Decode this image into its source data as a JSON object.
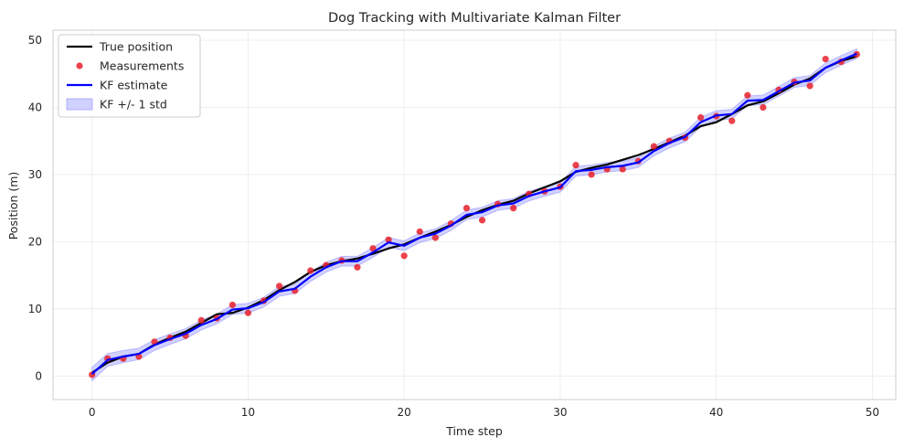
{
  "chart_data": {
    "type": "line",
    "title": "Dog Tracking with Multivariate Kalman Filter",
    "xlabel": "Time step",
    "ylabel": "Position (m)",
    "xlim": [
      -2.5,
      51.5
    ],
    "ylim": [
      -3.5,
      51.5
    ],
    "xticks": [
      0,
      10,
      20,
      30,
      40,
      50
    ],
    "yticks": [
      0,
      10,
      20,
      30,
      40,
      50
    ],
    "grid": true,
    "legend_position": "top-left",
    "x": [
      0,
      1,
      2,
      3,
      4,
      5,
      6,
      7,
      8,
      9,
      10,
      11,
      12,
      13,
      14,
      15,
      16,
      17,
      18,
      19,
      20,
      21,
      22,
      23,
      24,
      25,
      26,
      27,
      28,
      29,
      30,
      31,
      32,
      33,
      34,
      35,
      36,
      37,
      38,
      39,
      40,
      41,
      42,
      43,
      44,
      45,
      46,
      47,
      48,
      49
    ],
    "series": [
      {
        "name": "True position",
        "kind": "line",
        "color": "#000000",
        "values": [
          0.5,
          2.0,
          2.9,
          3.3,
          4.7,
          5.7,
          6.6,
          7.9,
          9.2,
          9.4,
          10.2,
          11.3,
          12.8,
          14.0,
          15.5,
          16.5,
          17.1,
          17.5,
          18.2,
          19.0,
          19.6,
          20.6,
          21.5,
          22.5,
          23.7,
          24.7,
          25.5,
          26.1,
          27.2,
          28.1,
          29.0,
          30.4,
          31.0,
          31.5,
          32.2,
          32.9,
          33.8,
          34.8,
          35.8,
          37.2,
          37.8,
          39.0,
          40.3,
          40.9,
          42.1,
          43.4,
          44.3,
          45.9,
          46.9,
          47.6
        ]
      },
      {
        "name": "Measurements",
        "kind": "scatter",
        "color": "#e8212b",
        "values": [
          0.2,
          2.6,
          2.6,
          2.9,
          5.1,
          5.7,
          6.0,
          8.3,
          8.6,
          10.6,
          9.4,
          11.2,
          13.4,
          12.7,
          15.7,
          16.5,
          17.2,
          16.2,
          19.0,
          20.3,
          17.9,
          21.5,
          20.6,
          22.7,
          25.0,
          23.2,
          25.6,
          25.0,
          27.1,
          27.5,
          28.2,
          31.4,
          30.0,
          30.8,
          30.8,
          32.0,
          34.2,
          35.0,
          35.5,
          38.5,
          38.7,
          38.0,
          41.8,
          40.0,
          42.6,
          43.8,
          43.2,
          47.2,
          46.8,
          47.9
        ]
      },
      {
        "name": "KF estimate",
        "kind": "line",
        "color": "#0000ff",
        "values": [
          0.3,
          2.4,
          2.9,
          3.3,
          4.6,
          5.5,
          6.3,
          7.6,
          8.5,
          9.9,
          10.1,
          11.0,
          12.6,
          13.0,
          14.8,
          16.2,
          17.1,
          17.1,
          18.4,
          19.9,
          19.4,
          20.6,
          21.2,
          22.4,
          24.0,
          24.4,
          25.4,
          25.7,
          26.8,
          27.5,
          28.1,
          30.5,
          30.7,
          31.1,
          31.3,
          31.8,
          33.5,
          34.7,
          35.6,
          37.8,
          38.8,
          39.0,
          41.0,
          41.1,
          42.4,
          43.7,
          44.0,
          45.9,
          47.0,
          48.0
        ]
      },
      {
        "name": "KF +/- 1 std",
        "kind": "band",
        "color": "#8c8cff",
        "std": [
          1.0,
          0.95,
          0.9,
          0.85,
          0.8,
          0.78,
          0.76,
          0.74,
          0.72,
          0.72,
          0.72,
          0.72,
          0.72,
          0.72,
          0.72,
          0.72,
          0.72,
          0.72,
          0.72,
          0.72,
          0.72,
          0.72,
          0.72,
          0.72,
          0.72,
          0.72,
          0.72,
          0.72,
          0.72,
          0.72,
          0.72,
          0.72,
          0.72,
          0.72,
          0.72,
          0.72,
          0.72,
          0.72,
          0.72,
          0.72,
          0.72,
          0.72,
          0.72,
          0.72,
          0.72,
          0.72,
          0.72,
          0.72,
          0.72,
          0.72
        ]
      }
    ],
    "legend": [
      {
        "label": "True position",
        "kind": "line",
        "color": "#000000"
      },
      {
        "label": "Measurements",
        "kind": "scatter",
        "color": "#e8212b"
      },
      {
        "label": "KF estimate",
        "kind": "line",
        "color": "#0000ff"
      },
      {
        "label": "KF +/- 1 std",
        "kind": "band",
        "color": "#8c8cff"
      }
    ]
  }
}
